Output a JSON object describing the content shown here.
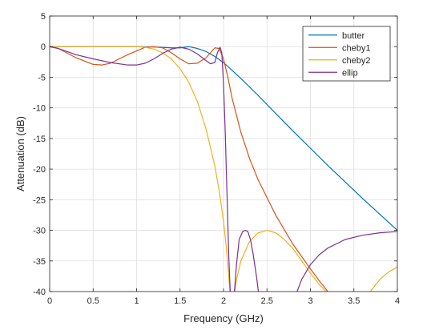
{
  "chart_data": {
    "type": "line",
    "title": "",
    "xlabel": "Frequency (GHz)",
    "ylabel": "Attenuation (dB)",
    "xlim": [
      0,
      4
    ],
    "ylim": [
      -40,
      5
    ],
    "xticks": [
      0,
      0.5,
      1,
      1.5,
      2,
      2.5,
      3,
      3.5,
      4
    ],
    "xtick_labels": [
      "0",
      "0.5",
      "1",
      "1.5",
      "2",
      "2.5",
      "3",
      "3.5",
      "4"
    ],
    "yticks": [
      5,
      0,
      -5,
      -10,
      -15,
      -20,
      -25,
      -30,
      -35,
      -40
    ],
    "ytick_labels": [
      "5",
      "0",
      "-5",
      "-10",
      "-15",
      "-20",
      "-25",
      "-30",
      "-35",
      "-40"
    ],
    "grid": true,
    "legend_position": "top-right",
    "series": [
      {
        "name": "butter",
        "color": "#0072BD",
        "x": [
          0,
          0.5,
          1.0,
          1.2,
          1.4,
          1.5,
          1.6,
          1.7,
          1.8,
          1.9,
          2.0,
          2.2,
          2.4,
          2.6,
          2.8,
          3.0,
          3.2,
          3.4,
          3.6,
          3.8,
          4.0
        ],
        "y": [
          0,
          0,
          0,
          -0.05,
          -0.2,
          -0.2,
          0,
          -0.3,
          -0.8,
          -1.6,
          -2.6,
          -5.2,
          -8.0,
          -10.9,
          -13.8,
          -16.6,
          -19.4,
          -22.1,
          -24.8,
          -27.4,
          -30.0
        ]
      },
      {
        "name": "cheby1",
        "color": "#D95319",
        "x": [
          0,
          0.1,
          0.3,
          0.5,
          0.6,
          0.7,
          0.9,
          1.1,
          1.2,
          1.3,
          1.4,
          1.5,
          1.6,
          1.7,
          1.8,
          1.85,
          1.9,
          1.95,
          2.0,
          2.05,
          2.1,
          2.2,
          2.3,
          2.4,
          2.6,
          2.8,
          3.0,
          3.1,
          3.2,
          3.25
        ],
        "y": [
          0,
          -0.3,
          -1.8,
          -2.9,
          -3.0,
          -2.7,
          -1.3,
          -0.1,
          0,
          -0.2,
          -1.0,
          -2.0,
          -2.8,
          -2.7,
          -1.8,
          -1.0,
          -0.2,
          -0.3,
          -2.0,
          -5.0,
          -8.5,
          -14.0,
          -18.3,
          -21.8,
          -27.5,
          -32.3,
          -36.3,
          -38.2,
          -40.0,
          -41.0
        ]
      },
      {
        "name": "cheby2",
        "color": "#EDB120",
        "x": [
          0,
          0.5,
          1.0,
          1.1,
          1.2,
          1.3,
          1.4,
          1.5,
          1.6,
          1.7,
          1.8,
          1.9,
          1.95,
          2.0,
          2.03,
          2.06,
          2.08
        ],
        "y": [
          0,
          0,
          0,
          -0.1,
          -0.4,
          -1.0,
          -2.0,
          -3.6,
          -5.8,
          -9.0,
          -13.5,
          -19.5,
          -23.5,
          -28.5,
          -32.5,
          -37.5,
          -41.0
        ]
      },
      {
        "name": "cheby2",
        "color": "#EDB120",
        "x": [
          2.12,
          2.15,
          2.2,
          2.3,
          2.4,
          2.5,
          2.6,
          2.7,
          2.8,
          2.9,
          3.0,
          3.1,
          3.2,
          3.25
        ],
        "y": [
          -41.0,
          -38.0,
          -35.0,
          -31.8,
          -30.4,
          -30.0,
          -30.4,
          -31.5,
          -33.0,
          -35.0,
          -37.0,
          -38.8,
          -40.3,
          -41.0
        ]
      },
      {
        "name": "cheby2",
        "color": "#EDB120",
        "x": [
          3.65,
          3.7,
          3.8,
          3.9,
          4.0
        ],
        "y": [
          -41.0,
          -39.8,
          -38.0,
          -36.8,
          -36.0
        ]
      },
      {
        "name": "ellip",
        "color": "#7E2F8E",
        "x": [
          0,
          0.1,
          0.3,
          0.5,
          0.7,
          0.9,
          1.0,
          1.1,
          1.2,
          1.3,
          1.4,
          1.5,
          1.6,
          1.7,
          1.8,
          1.85,
          1.9,
          1.93,
          1.96,
          1.98,
          2.0,
          2.02,
          2.04,
          2.06,
          2.08
        ],
        "y": [
          0,
          -0.3,
          -1.3,
          -2.0,
          -2.6,
          -3.0,
          -3.0,
          -2.7,
          -2.0,
          -1.1,
          -0.4,
          -0.1,
          -0.4,
          -1.2,
          -2.3,
          -2.8,
          -2.6,
          -1.0,
          -0.1,
          -1.0,
          -6.0,
          -14.0,
          -24.0,
          -34.0,
          -41.0
        ]
      },
      {
        "name": "ellip",
        "color": "#7E2F8E",
        "x": [
          2.12,
          2.15,
          2.18,
          2.22,
          2.25,
          2.28,
          2.31,
          2.34,
          2.38,
          2.41
        ],
        "y": [
          -41.0,
          -35.5,
          -31.5,
          -30.2,
          -30.0,
          -30.2,
          -31.5,
          -33.8,
          -37.6,
          -41.0
        ]
      },
      {
        "name": "ellip",
        "color": "#7E2F8E",
        "x": [
          2.82,
          2.9,
          3.0,
          3.1,
          3.2,
          3.4,
          3.6,
          3.8,
          4.0
        ],
        "y": [
          -41.0,
          -38.0,
          -35.6,
          -34.0,
          -32.9,
          -31.5,
          -30.8,
          -30.4,
          -30.2
        ]
      }
    ],
    "legend": [
      "butter",
      "cheby1",
      "cheby2",
      "ellip"
    ]
  }
}
